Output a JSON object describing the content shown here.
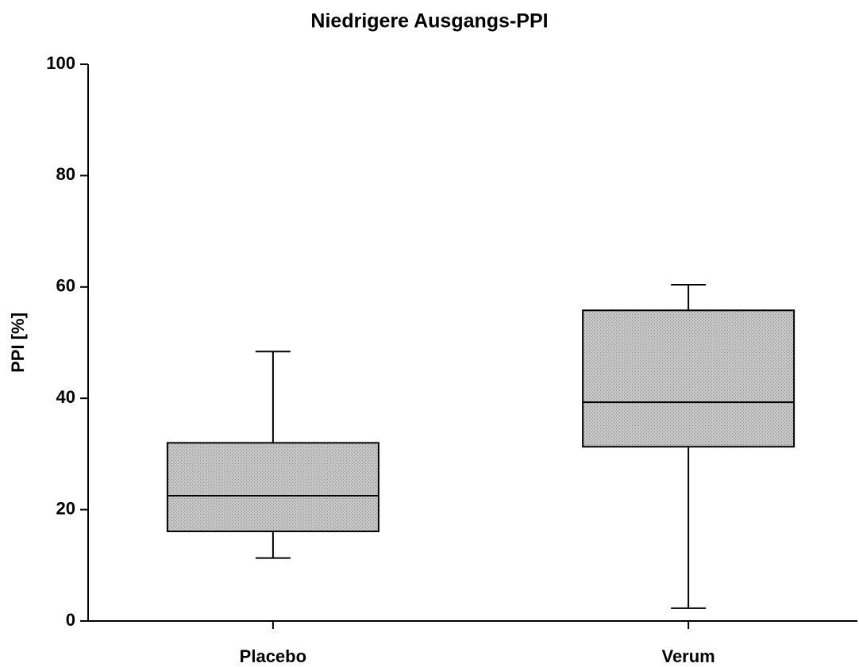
{
  "chart_data": {
    "type": "box",
    "title": "Niedrigere Ausgangs-PPI",
    "y_label": "PPI [%]",
    "categories": [
      "Placebo",
      "Verum"
    ],
    "boxes": [
      {
        "min": 11.3,
        "q1": 16.1,
        "median": 22.5,
        "q3": 32.0,
        "max": 48.4
      },
      {
        "min": 2.3,
        "q1": 31.3,
        "median": 39.3,
        "q3": 55.8,
        "max": 60.4
      }
    ],
    "color": "#bdbdbd",
    "ylim": [
      0,
      100
    ],
    "yticks": [
      0,
      20,
      40,
      60,
      80,
      100
    ]
  }
}
